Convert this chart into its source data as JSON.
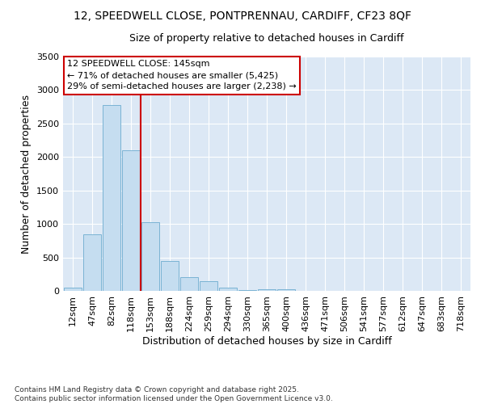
{
  "title_line1": "12, SPEEDWELL CLOSE, PONTPRENNAU, CARDIFF, CF23 8QF",
  "title_line2": "Size of property relative to detached houses in Cardiff",
  "xlabel": "Distribution of detached houses by size in Cardiff",
  "ylabel": "Number of detached properties",
  "bar_color": "#c5ddf0",
  "bar_edge_color": "#7ab3d4",
  "background_color": "#dce8f5",
  "vline_color": "#cc0000",
  "annotation_box_text": "12 SPEEDWELL CLOSE: 145sqm\n← 71% of detached houses are smaller (5,425)\n29% of semi-detached houses are larger (2,238) →",
  "categories": [
    "12sqm",
    "47sqm",
    "82sqm",
    "118sqm",
    "153sqm",
    "188sqm",
    "224sqm",
    "259sqm",
    "294sqm",
    "330sqm",
    "365sqm",
    "400sqm",
    "436sqm",
    "471sqm",
    "506sqm",
    "541sqm",
    "577sqm",
    "612sqm",
    "647sqm",
    "683sqm",
    "718sqm"
  ],
  "values": [
    50,
    850,
    2780,
    2100,
    1030,
    450,
    200,
    150,
    50,
    10,
    30,
    30,
    5,
    5,
    3,
    2,
    2,
    1,
    1,
    1,
    1
  ],
  "ylim": [
    0,
    3500
  ],
  "yticks": [
    0,
    500,
    1000,
    1500,
    2000,
    2500,
    3000,
    3500
  ],
  "footnote": "Contains HM Land Registry data © Crown copyright and database right 2025.\nContains public sector information licensed under the Open Government Licence v3.0.",
  "title_fontsize": 10,
  "subtitle_fontsize": 9,
  "axis_label_fontsize": 9,
  "tick_fontsize": 8,
  "annot_fontsize": 8
}
